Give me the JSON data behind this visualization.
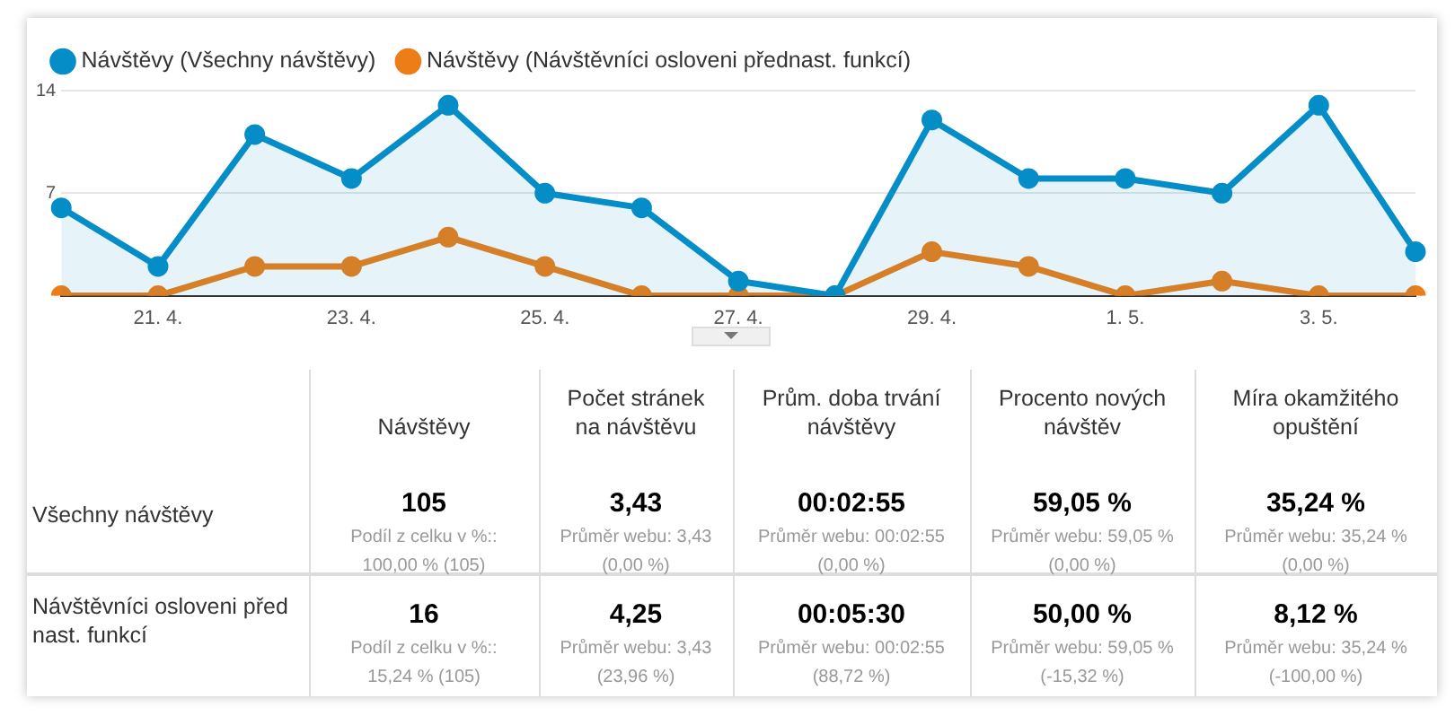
{
  "chart_data": {
    "type": "line",
    "categories": [
      null,
      "21. 4.",
      null,
      "23. 4.",
      null,
      "25. 4.",
      null,
      "27. 4.",
      null,
      "29. 4.",
      null,
      "1. 5.",
      null,
      "3. 5.",
      null
    ],
    "series": [
      {
        "name": "Návštěvy (Všechny návštěvy)",
        "type": "area",
        "color": "#058dc7",
        "values": [
          6,
          2,
          11,
          8,
          13,
          7,
          6,
          1,
          0,
          12,
          8,
          8,
          7,
          13,
          3
        ]
      },
      {
        "name": "Návštěvy (Návštěvníci osloveni přednast. funkcí)",
        "type": "line",
        "color": "#ed7e17",
        "values": [
          0,
          0,
          2,
          2,
          4,
          2,
          0,
          0,
          0,
          3,
          2,
          0,
          1,
          0,
          0
        ]
      }
    ],
    "ylim": [
      0,
      14
    ],
    "yticks": [
      7,
      14
    ],
    "grid": "y",
    "legend": "top left",
    "marker": "circle",
    "annotations": [
      "Návštěvy",
      "Počet stránek na návštěvu",
      "Prům. doba trvání návštěvy",
      "Procento nových návštěv",
      "Míra okamžitého opuštění",
      "Všechny návštěvy",
      "105",
      "Podíl z celku v %::",
      "100,00 % (105)",
      "3,43",
      "Průměr webu: 3,43",
      "(0,00 %)",
      "00:02:55",
      "Průměr webu: 00:02:55",
      "(0,00 %)",
      "59,05 %",
      "Průměr webu: 59,05 %",
      "(0,00 %)",
      "35,24 %",
      "Průměr webu: 35,24 %",
      "(0,00 %)",
      "Návštěvníci osloveni před nast. funkcí",
      "16",
      "Podíl z celku v %::",
      "15,24 % (105)",
      "4,25",
      "Průměr webu: 3,43",
      "(23,96 %)",
      "00:05:30",
      "Průměr webu: 00:02:55",
      "(88,72 %)",
      "50,00 %",
      "Průměr webu: 59,05 %",
      "(-15,32 %)",
      "8,12 %",
      "Průměr webu: 35,24 %",
      "(-100,00 %)"
    ]
  }
}
